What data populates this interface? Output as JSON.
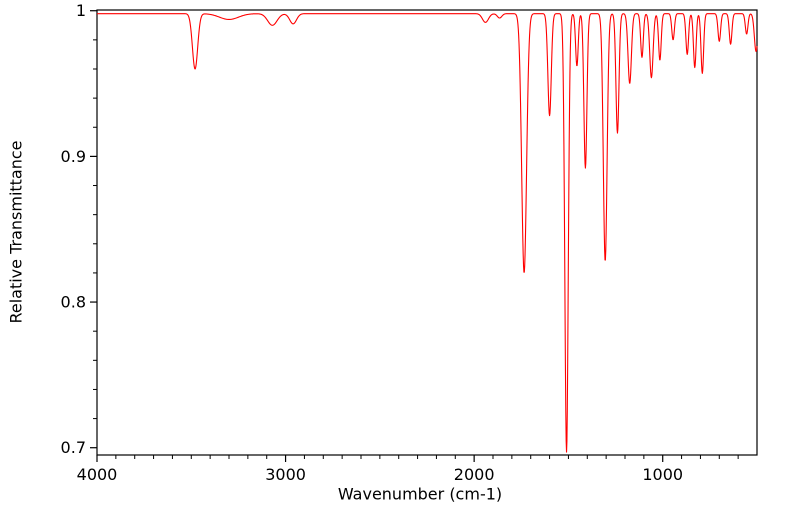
{
  "chart_data": {
    "type": "line",
    "title": "",
    "xlabel": "Wavenumber (cm-1)",
    "ylabel": "Relative Transmittance",
    "x_range": [
      4000,
      500
    ],
    "x_reversed": true,
    "y_range": [
      0.695,
      1.0005
    ],
    "x_ticks": [
      {
        "value": 4000,
        "label": "4000"
      },
      {
        "value": 3000,
        "label": "3000"
      },
      {
        "value": 2000,
        "label": "2000"
      },
      {
        "value": 1000,
        "label": "1000"
      }
    ],
    "x_minor_step": 100,
    "y_ticks": [
      {
        "value": 0.7,
        "label": "0.7"
      },
      {
        "value": 0.8,
        "label": "0.8"
      },
      {
        "value": 0.9,
        "label": "0.9"
      },
      {
        "value": 1.0,
        "label": "1"
      }
    ],
    "y_minor_step": 0.02,
    "grid": false,
    "legend": "none",
    "line_color": "#ff0000",
    "axis_color": "#000000",
    "background": "#ffffff",
    "baseline_transmittance": 0.998,
    "peaks": [
      {
        "center": 3480,
        "min_transmittance": 0.96,
        "width": 14
      },
      {
        "center": 3300,
        "min_transmittance": 0.994,
        "width": 50
      },
      {
        "center": 3070,
        "min_transmittance": 0.99,
        "width": 25
      },
      {
        "center": 2960,
        "min_transmittance": 0.991,
        "width": 18
      },
      {
        "center": 1940,
        "min_transmittance": 0.992,
        "width": 16
      },
      {
        "center": 1865,
        "min_transmittance": 0.995,
        "width": 12
      },
      {
        "center": 1735,
        "min_transmittance": 0.82,
        "width": 13
      },
      {
        "center": 1600,
        "min_transmittance": 0.928,
        "width": 9
      },
      {
        "center": 1510,
        "min_transmittance": 0.697,
        "width": 9
      },
      {
        "center": 1455,
        "min_transmittance": 0.962,
        "width": 7
      },
      {
        "center": 1410,
        "min_transmittance": 0.892,
        "width": 8
      },
      {
        "center": 1305,
        "min_transmittance": 0.828,
        "width": 10
      },
      {
        "center": 1240,
        "min_transmittance": 0.916,
        "width": 8
      },
      {
        "center": 1175,
        "min_transmittance": 0.95,
        "width": 9
      },
      {
        "center": 1110,
        "min_transmittance": 0.968,
        "width": 7
      },
      {
        "center": 1060,
        "min_transmittance": 0.954,
        "width": 9
      },
      {
        "center": 1015,
        "min_transmittance": 0.966,
        "width": 7
      },
      {
        "center": 945,
        "min_transmittance": 0.98,
        "width": 7
      },
      {
        "center": 870,
        "min_transmittance": 0.97,
        "width": 7
      },
      {
        "center": 830,
        "min_transmittance": 0.961,
        "width": 7
      },
      {
        "center": 790,
        "min_transmittance": 0.957,
        "width": 7
      },
      {
        "center": 700,
        "min_transmittance": 0.979,
        "width": 7
      },
      {
        "center": 640,
        "min_transmittance": 0.977,
        "width": 7
      },
      {
        "center": 555,
        "min_transmittance": 0.984,
        "width": 7
      },
      {
        "center": 505,
        "min_transmittance": 0.972,
        "width": 9
      }
    ]
  }
}
